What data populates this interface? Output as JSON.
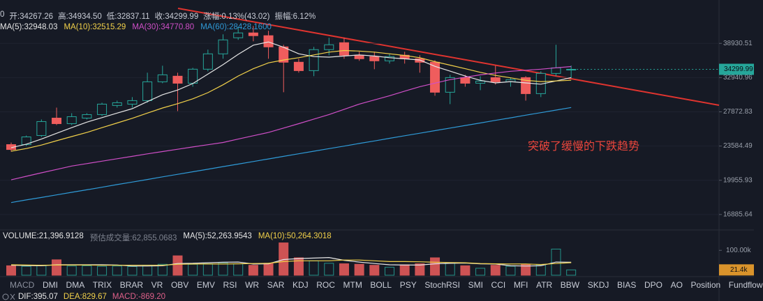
{
  "header": {
    "info": [
      "0",
      "开:34267.26",
      "高:34934.50",
      "低:32837.11",
      "收:34299.99",
      "涨幅:0.13%(43.02)",
      "振幅:6.12%"
    ],
    "indicator_tabs": [
      "MACD",
      "DMI",
      "DMA",
      "TRIX",
      "BRAR",
      "VR",
      "OBV",
      "EMV",
      "RSI",
      "WR",
      "SAR",
      "KDJ",
      "ROC",
      "MTM",
      "BOLL",
      "PSY",
      "StochRSI",
      "SMI",
      "CCI",
      "MFI",
      "ATR",
      "BBW",
      "SKDJ",
      "BIAS",
      "DPO",
      "AO",
      "Position",
      "Fundflow"
    ],
    "macd_info": [
      {
        "text": "DIF:395.07",
        "color": "#e6e6e6"
      },
      {
        "text": "DEA:829.67",
        "color": "#f2d14a"
      },
      {
        "text": "MACD:-869.20",
        "color": "#e0608a"
      }
    ]
  },
  "chart_data": [
    {
      "type": "candlestick",
      "annotation": "突破了缓慢的下跌趋势",
      "log_scale": true,
      "grid": true,
      "ylim": [
        15660,
        47300
      ],
      "yticks": [
        16885.64,
        19955.93,
        23584.49,
        27872.83,
        32940.96,
        38930.51
      ],
      "up_color": "#26a69a",
      "down_color": "#ef5d5d",
      "candles": {
        "open": [
          23750,
          23750,
          24830,
          27030,
          26310,
          27030,
          27500,
          28750,
          28940,
          29440,
          32270,
          33170,
          32050,
          34320,
          36990,
          40010,
          40970,
          40420,
          38270,
          35510,
          34080,
          37760,
          39060,
          36740,
          36490,
          35750,
          36740,
          36120,
          35510,
          30670,
          32940,
          32050,
          32940,
          32270,
          32940,
          30460,
          33620,
          34267.26
        ],
        "high": [
          23990,
          24830,
          26850,
          28450,
          27690,
          27690,
          29140,
          29440,
          29950,
          33740,
          34910,
          33740,
          34550,
          37760,
          40690,
          42110,
          42390,
          41400,
          38670,
          36120,
          38270,
          40010,
          40010,
          37370,
          37370,
          36990,
          37370,
          36740,
          35870,
          33390,
          33390,
          33170,
          34910,
          32940,
          33170,
          33970,
          38670,
          34934.5
        ],
        "low": [
          22950,
          23590,
          24660,
          26130,
          26130,
          26850,
          27310,
          28450,
          28450,
          29140,
          32050,
          27970,
          31510,
          33970,
          36120,
          39600,
          39330,
          36120,
          30670,
          33740,
          33170,
          36740,
          36120,
          35750,
          34320,
          35270,
          35270,
          33740,
          30150,
          28940,
          31510,
          30980,
          31840,
          31510,
          29440,
          29950,
          33170,
          32837.11
        ],
        "close": [
          23190,
          24660,
          26580,
          26310,
          27220,
          27500,
          28940,
          29140,
          29440,
          32270,
          33390,
          32050,
          34320,
          36990,
          39600,
          40970,
          40420,
          38270,
          35510,
          34080,
          37760,
          38670,
          36740,
          36120,
          35750,
          36490,
          36120,
          35510,
          30670,
          32940,
          32050,
          32390,
          32270,
          32610,
          30460,
          33620,
          34550,
          34299.99
        ]
      },
      "series": [
        {
          "name": "MA(5):32948.03",
          "color": "#e6e6e6",
          "values": [
            23400,
            23800,
            24400,
            25100,
            25800,
            26500,
            27100,
            27700,
            28300,
            29300,
            30300,
            31000,
            32000,
            33500,
            35100,
            36900,
            38600,
            39200,
            38200,
            37000,
            36500,
            36400,
            36600,
            36800,
            36600,
            36300,
            36100,
            35900,
            34800,
            34000,
            33200,
            32500,
            32100,
            32300,
            32100,
            31900,
            32400,
            32948
          ]
        },
        {
          "name": "MA(10):32515.29",
          "color": "#f2d14a",
          "values": [
            23000,
            23300,
            23700,
            24200,
            24700,
            25200,
            25800,
            26400,
            27000,
            27700,
            28400,
            29000,
            29700,
            30600,
            31800,
            33200,
            34400,
            35400,
            35900,
            36300,
            36800,
            37300,
            37600,
            37500,
            37300,
            37000,
            36700,
            36300,
            35600,
            35000,
            34400,
            33800,
            33300,
            32900,
            32500,
            32300,
            32400,
            32515
          ]
        },
        {
          "name": "MA(30):34770.80",
          "color": "#d04fc8",
          "values": [
            20000,
            20350,
            20700,
            21040,
            21390,
            21650,
            21910,
            22170,
            22430,
            22700,
            22960,
            23220,
            23480,
            23740,
            24000,
            24400,
            24800,
            25200,
            25750,
            26310,
            26900,
            27500,
            28220,
            28940,
            29540,
            30150,
            30830,
            31510,
            32060,
            32610,
            33000,
            33390,
            33680,
            33970,
            34150,
            34320,
            34550,
            34770
          ]
        },
        {
          "name": "MA(60):28428.1600",
          "color": "#2f9bd8",
          "values": [
            17900,
            18130,
            18350,
            18580,
            18820,
            19050,
            19290,
            19540,
            19780,
            20030,
            20290,
            20540,
            20800,
            21060,
            21330,
            21600,
            21870,
            22150,
            22430,
            22710,
            23000,
            23290,
            23580,
            23880,
            24180,
            24490,
            24800,
            25110,
            25430,
            25750,
            26070,
            26400,
            26740,
            27070,
            27420,
            27760,
            28110,
            28470
          ]
        }
      ]
    },
    {
      "type": "bar",
      "ylim": [
        0,
        140000
      ],
      "yticks": [
        {
          "value": 100000,
          "label": "100.00k"
        }
      ],
      "estimate_label": "预估成交量:62,855.0683",
      "last_value_label": "21.4k",
      "series": [
        {
          "name": "VOLUME:21,396.9128",
          "color": "#e6e6e6",
          "values": [
            38000,
            36000,
            38000,
            62000,
            37000,
            38000,
            36000,
            37000,
            35000,
            40000,
            44000,
            78000,
            44000,
            46000,
            50000,
            46000,
            40000,
            48000,
            130000,
            70000,
            58000,
            48000,
            46000,
            44000,
            40000,
            32000,
            42000,
            46000,
            70000,
            50000,
            38000,
            28000,
            40000,
            36000,
            44000,
            42000,
            105000,
            21396.9128
          ]
        },
        {
          "name": "MA(5):52,263.9543",
          "color": "#e6e6e6",
          "values": [
            40000,
            39000,
            38000,
            42000,
            42000,
            42000,
            42000,
            41000,
            37000,
            37000,
            38000,
            47000,
            48000,
            50000,
            52000,
            53000,
            45000,
            46000,
            63000,
            67000,
            69000,
            71000,
            60000,
            53000,
            47000,
            42000,
            41000,
            41000,
            46000,
            48000,
            49000,
            46000,
            45000,
            38000,
            37000,
            38000,
            53000,
            52264
          ]
        },
        {
          "name": "MA(10):50,264.3018",
          "color": "#f2d14a",
          "values": [
            42000,
            41000,
            40000,
            41000,
            41000,
            41000,
            40000,
            40000,
            40000,
            40000,
            40000,
            44000,
            45000,
            45000,
            45000,
            46000,
            47000,
            48000,
            55000,
            58000,
            58000,
            58000,
            61000,
            61000,
            58000,
            55000,
            55000,
            54000,
            52000,
            51000,
            50000,
            47000,
            46000,
            45000,
            45000,
            43000,
            47000,
            50264
          ]
        }
      ]
    }
  ]
}
